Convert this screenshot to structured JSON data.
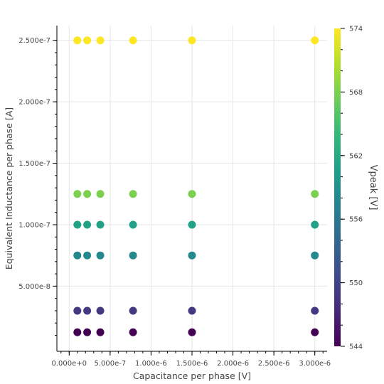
{
  "chart_data": {
    "type": "scatter",
    "xlabel": "Capacitance per phase [V]",
    "ylabel": "Equivalent Inductance per phase [A]",
    "xlim": [
      -1.5e-07,
      3.15e-06
    ],
    "ylim": [
      -3e-09,
      2.62e-07
    ],
    "x_ticks": [
      0,
      5e-07,
      1e-06,
      1.5e-06,
      2e-06,
      2.5e-06,
      3e-06
    ],
    "x_tick_labels": [
      "0.000e+0",
      "5.000e-7",
      "1.000e-6",
      "1.500e-6",
      "2.000e-6",
      "2.500e-6",
      "3.000e-6"
    ],
    "y_ticks": [
      5e-08,
      1e-07,
      1.5e-07,
      2e-07,
      2.5e-07
    ],
    "y_tick_labels": [
      "5.000e-8",
      "1.000e-7",
      "1.500e-7",
      "2.000e-7",
      "2.500e-7"
    ],
    "grid": true,
    "colorbar": {
      "title": "Vpeak [V]",
      "colormap": "viridis",
      "range": [
        544,
        574
      ],
      "ticks": [
        544,
        550,
        556,
        562,
        568,
        574
      ],
      "tick_labels": [
        "544",
        "550",
        "556",
        "562",
        "568",
        "574"
      ]
    },
    "x": [
      1e-07,
      2.2e-07,
      3.8e-07,
      7.8e-07,
      1.5e-06,
      3e-06
    ],
    "rows": [
      {
        "y": 2.5e-07,
        "color_value": 574
      },
      {
        "y": 1.25e-07,
        "color_value": 568
      },
      {
        "y": 1e-07,
        "color_value": 561
      },
      {
        "y": 7.5e-08,
        "color_value": 558
      },
      {
        "y": 3e-08,
        "color_value": 549
      },
      {
        "y": 1.25e-08,
        "color_value": 544
      }
    ]
  }
}
